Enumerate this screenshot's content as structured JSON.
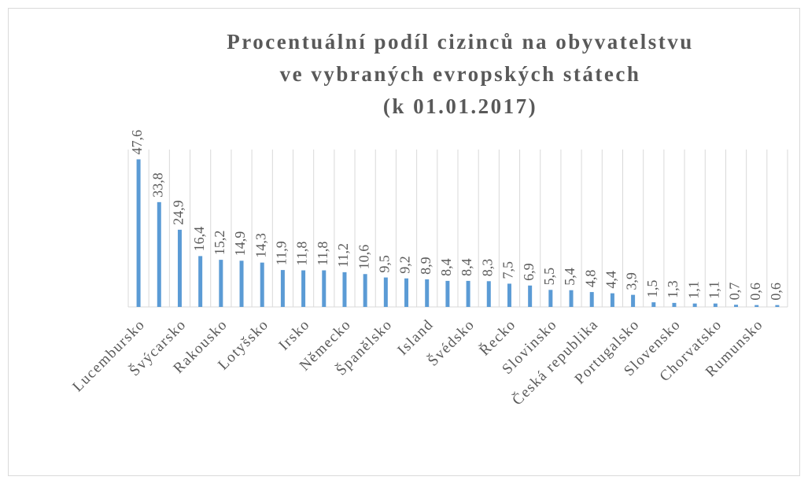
{
  "chart_data": {
    "type": "bar",
    "title": [
      "Procentuální podíl cizinců na obyvatelstvu",
      "ve vybraných evropských státech",
      "(k 01.01.2017)"
    ],
    "categories": [
      "Lucembursko",
      null,
      "Švýcarsko",
      null,
      "Rakousko",
      null,
      "Lotyšsko",
      null,
      "Irsko",
      null,
      "Německo",
      null,
      "Španělsko",
      null,
      "Island",
      null,
      "Švédsko",
      null,
      "Řecko",
      null,
      "Slovinsko",
      null,
      "Česká republika",
      null,
      "Portugalsko",
      null,
      "Slovensko",
      null,
      "Chorvatsko",
      null,
      "Rumunsko",
      null
    ],
    "values": [
      47.6,
      33.8,
      24.9,
      16.4,
      15.2,
      14.9,
      14.3,
      11.9,
      11.8,
      11.8,
      11.2,
      10.6,
      9.5,
      9.2,
      8.9,
      8.4,
      8.4,
      8.3,
      7.5,
      6.9,
      5.5,
      5.4,
      4.8,
      4.4,
      3.9,
      1.5,
      1.3,
      1.1,
      1.1,
      0.7,
      0.6,
      0.6
    ],
    "value_labels": [
      "47,6",
      "33,8",
      "24,9",
      "16,4",
      "15,2",
      "14,9",
      "14,3",
      "11,9",
      "11,8",
      "11,8",
      "11,2",
      "10,6",
      "9,5",
      "9,2",
      "8,9",
      "8,4",
      "8,4",
      "8,3",
      "7,5",
      "6,9",
      "5,5",
      "5,4",
      "4,8",
      "4,4",
      "3,9",
      "1,5",
      "1,3",
      "1,1",
      "1,1",
      "0,7",
      "0,6",
      "0,6"
    ],
    "color": "#5b9bd5",
    "ylim": [
      0,
      50
    ],
    "grid": true
  }
}
